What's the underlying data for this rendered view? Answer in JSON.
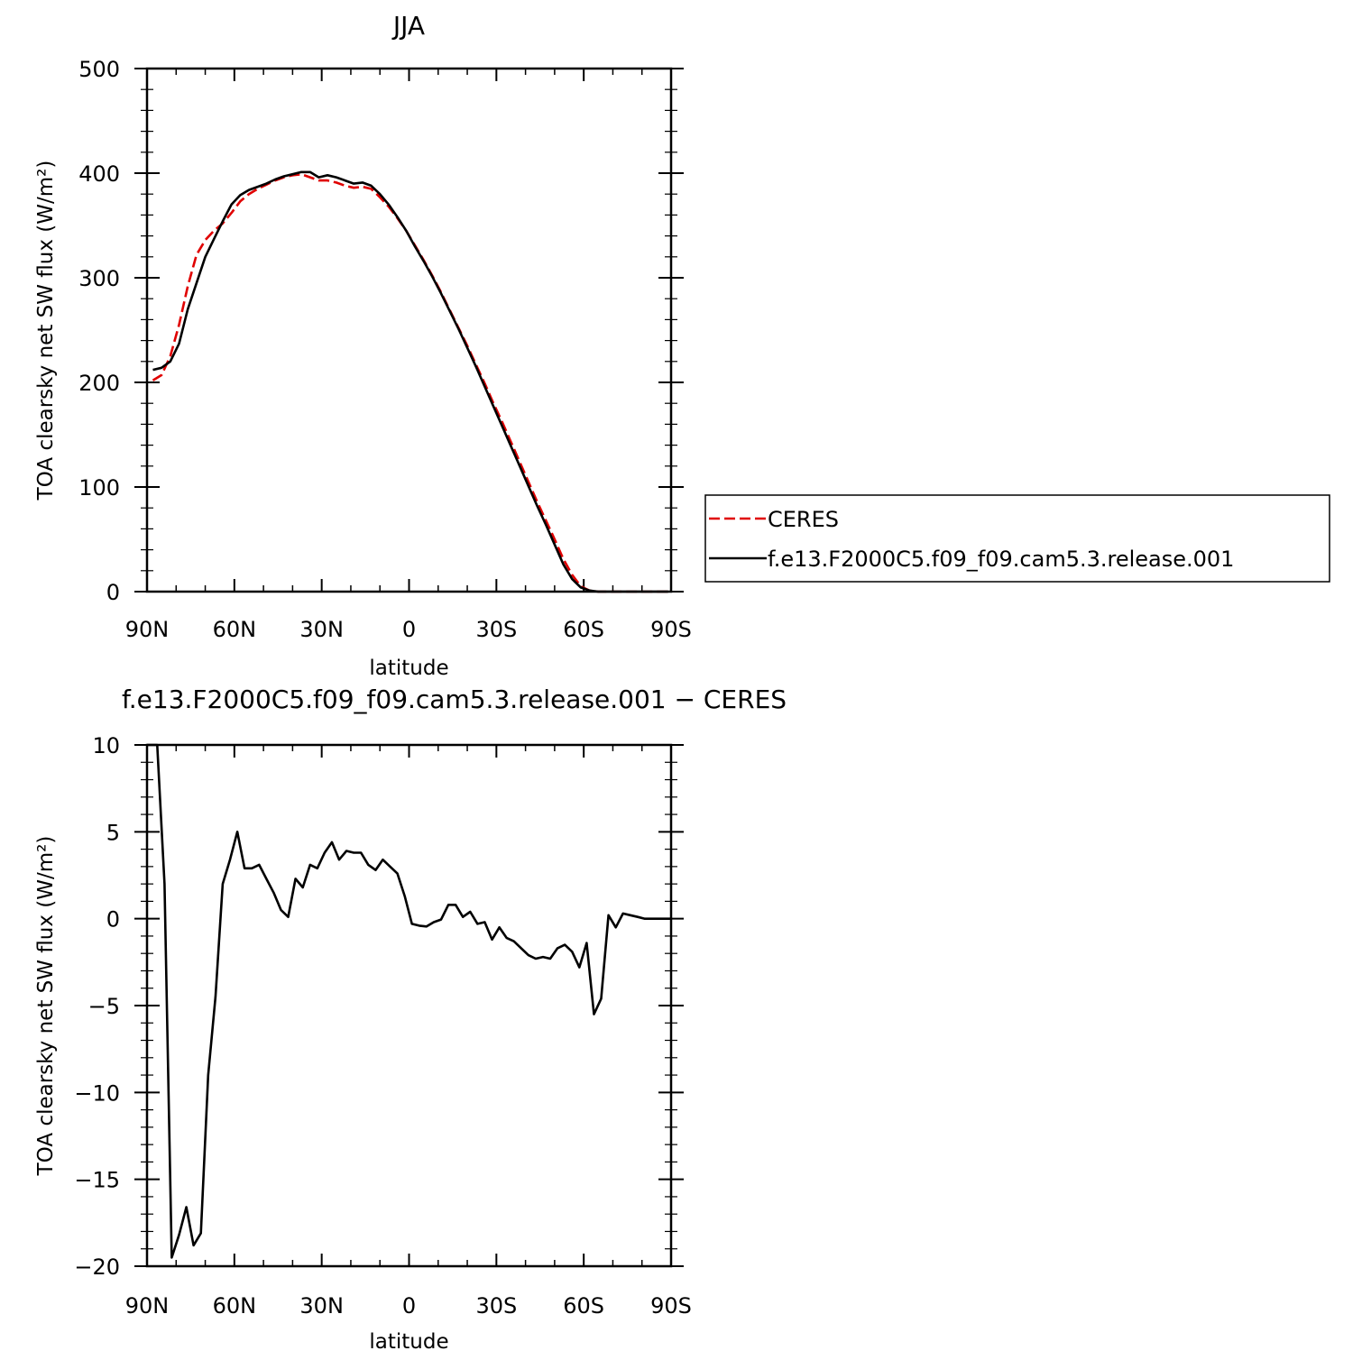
{
  "chart_data": [
    {
      "type": "line",
      "title": "JJA",
      "xlabel": "latitude",
      "ylabel": "TOA clearsky net SW flux (W/m²)",
      "xlim": [
        90,
        -90
      ],
      "ylim": [
        0,
        500
      ],
      "x_ticks": [
        {
          "value": 90,
          "label": "90N"
        },
        {
          "value": 60,
          "label": "60N"
        },
        {
          "value": 30,
          "label": "30N"
        },
        {
          "value": 0,
          "label": "0"
        },
        {
          "value": -30,
          "label": "30S"
        },
        {
          "value": -60,
          "label": "60S"
        },
        {
          "value": -90,
          "label": "90S"
        }
      ],
      "y_ticks": [
        {
          "value": 0,
          "label": "0"
        },
        {
          "value": 100,
          "label": "100"
        },
        {
          "value": 200,
          "label": "200"
        },
        {
          "value": 300,
          "label": "300"
        },
        {
          "value": 400,
          "label": "400"
        },
        {
          "value": 500,
          "label": "500"
        }
      ],
      "legend_position": "right",
      "series": [
        {
          "name": "CERES",
          "color": "#e00000",
          "dash": true,
          "x": [
            88,
            85,
            82,
            79,
            76,
            73,
            70,
            67,
            64,
            61,
            58,
            55,
            52,
            49,
            46,
            43,
            40,
            37,
            34,
            31,
            28,
            25,
            22,
            19,
            16,
            13,
            10,
            7,
            4,
            1,
            -2,
            -5,
            -8,
            -11,
            -14,
            -17,
            -20,
            -23,
            -26,
            -29,
            -32,
            -35,
            -38,
            -41,
            -44,
            -47,
            -50,
            -53,
            -56,
            -59,
            -62,
            -65,
            -68,
            -71,
            -74,
            -77,
            -80,
            -83,
            -86,
            -89
          ],
          "values": [
            202,
            207,
            225,
            255,
            292,
            322,
            336,
            345,
            352,
            362,
            373,
            380,
            385,
            389,
            393,
            396,
            398,
            399,
            396,
            393,
            393,
            391,
            388,
            386,
            387,
            385,
            377,
            368,
            357,
            345,
            331,
            317,
            302,
            286,
            269,
            252,
            235,
            217,
            199,
            180,
            162,
            143,
            124,
            105,
            86,
            68,
            50,
            31,
            16,
            5,
            1,
            0,
            0,
            0,
            0,
            0,
            0,
            0,
            0,
            0
          ]
        },
        {
          "name": "f.e13.F2000C5.f09_f09.cam5.3.release.001",
          "color": "#000000",
          "dash": false,
          "x": [
            88,
            85,
            82,
            79,
            76,
            73,
            70,
            67,
            64,
            61,
            58,
            55,
            52,
            49,
            46,
            43,
            40,
            37,
            34,
            31,
            28,
            25,
            22,
            19,
            16,
            13,
            10,
            7,
            4,
            1,
            -2,
            -5,
            -8,
            -11,
            -14,
            -17,
            -20,
            -23,
            -26,
            -29,
            -32,
            -35,
            -38,
            -41,
            -44,
            -47,
            -50,
            -53,
            -56,
            -59,
            -62,
            -65,
            -68,
            -71,
            -74,
            -77,
            -80,
            -83,
            -86,
            -89
          ],
          "values": [
            212,
            214,
            220,
            237,
            270,
            295,
            320,
            337,
            354,
            370,
            379,
            384,
            387,
            390,
            394,
            397,
            399,
            401,
            401,
            396,
            398,
            396,
            393,
            390,
            391,
            388,
            380,
            370,
            358,
            345,
            330,
            316,
            301,
            285,
            268,
            251,
            233,
            215,
            196,
            177,
            158,
            139,
            120,
            101,
            82,
            64,
            45,
            26,
            12,
            4,
            1,
            0,
            0,
            0,
            0,
            0,
            0,
            0,
            0,
            0
          ]
        }
      ]
    },
    {
      "type": "line",
      "title": "f.e13.F2000C5.f09_f09.cam5.3.release.001 − CERES",
      "xlabel": "latitude",
      "ylabel": "TOA clearsky net SW flux (W/m²)",
      "xlim": [
        90,
        -90
      ],
      "ylim": [
        -20,
        10
      ],
      "x_ticks": [
        {
          "value": 90,
          "label": "90N"
        },
        {
          "value": 60,
          "label": "60N"
        },
        {
          "value": 30,
          "label": "30N"
        },
        {
          "value": 0,
          "label": "0"
        },
        {
          "value": -30,
          "label": "30S"
        },
        {
          "value": -60,
          "label": "60S"
        },
        {
          "value": -90,
          "label": "90S"
        }
      ],
      "y_ticks": [
        {
          "value": -20,
          "label": "−20"
        },
        {
          "value": -15,
          "label": "−15"
        },
        {
          "value": -10,
          "label": "−10"
        },
        {
          "value": -5,
          "label": "−5"
        },
        {
          "value": 0,
          "label": "0"
        },
        {
          "value": 5,
          "label": "5"
        },
        {
          "value": 10,
          "label": "10"
        }
      ],
      "series": [
        {
          "name": "",
          "color": "#000000",
          "dash": false,
          "x": [
            90,
            86.5,
            84,
            81.5,
            79,
            76.5,
            74,
            71.5,
            69,
            66.5,
            64,
            61.5,
            59,
            56.5,
            54,
            51.5,
            49,
            46.5,
            44,
            41.5,
            39,
            36.5,
            34,
            31.5,
            29,
            26.5,
            24,
            21.5,
            19,
            16.5,
            14,
            11.5,
            9,
            6.5,
            4,
            1.5,
            -1,
            -3.5,
            -6,
            -8.5,
            -11,
            -13.5,
            -16,
            -18.5,
            -21,
            -23.5,
            -26,
            -28.5,
            -31,
            -33.5,
            -36,
            -38.5,
            -41,
            -43.5,
            -46,
            -48.5,
            -51,
            -53.5,
            -56,
            -58.5,
            -61,
            -63.5,
            -66,
            -68.5,
            -71,
            -73.5,
            -76,
            -78.5,
            -81,
            -90
          ],
          "values": [
            10,
            10,
            2,
            -19.5,
            -18.2,
            -16.6,
            -18.8,
            -18.1,
            -9,
            -4.5,
            2,
            3.4,
            5,
            2.9,
            2.9,
            3.1,
            2.3,
            1.5,
            0.5,
            0.1,
            2.3,
            1.8,
            3.1,
            2.9,
            3.8,
            4.4,
            3.4,
            3.9,
            3.8,
            3.8,
            3.1,
            2.8,
            3.4,
            3,
            2.6,
            1.3,
            -0.3,
            -0.4,
            -0.45,
            -0.2,
            -0.05,
            0.8,
            0.8,
            0.1,
            0.4,
            -0.3,
            -0.2,
            -1.2,
            -0.5,
            -1.1,
            -1.3,
            -1.7,
            -2.1,
            -2.3,
            -2.2,
            -2.3,
            -1.7,
            -1.5,
            -1.9,
            -2.8,
            -1.4,
            -5.5,
            -4.6,
            0.2,
            -0.5,
            0.3,
            0.2,
            0.1,
            0,
            0
          ]
        }
      ]
    }
  ]
}
